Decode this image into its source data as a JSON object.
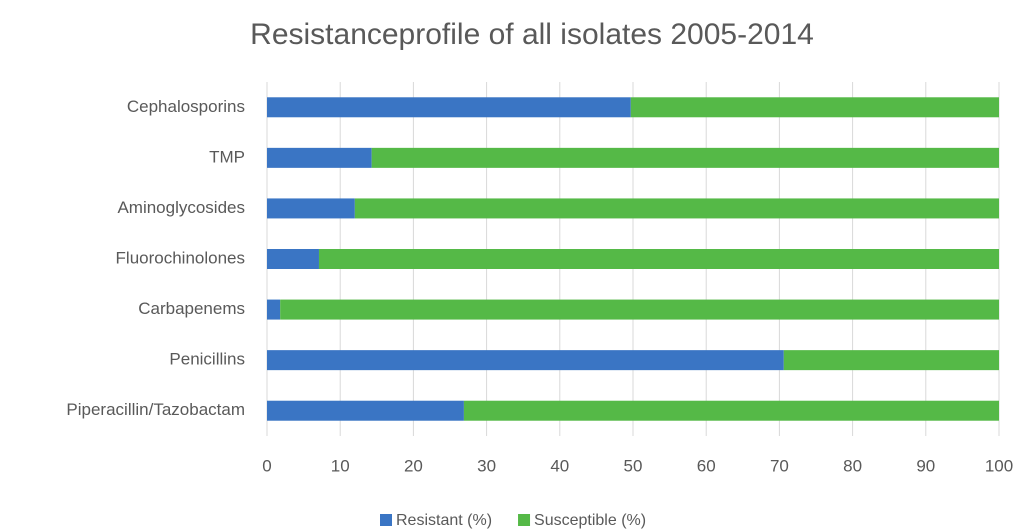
{
  "chart_data": {
    "type": "stacked-bar-horizontal",
    "title": "Resistanceprofile of all isolates 2005-2014",
    "categories": [
      "Cephalosporins",
      "TMP",
      "Aminoglycosides",
      "Fluorochinolones",
      "Carbapenems",
      "Penicillins",
      "Piperacillin/Tazobactam"
    ],
    "series": [
      {
        "name": "Resistant (%)",
        "color": "#3a75c4",
        "values": [
          49.7,
          14.3,
          12.0,
          7.1,
          1.8,
          70.6,
          26.9
        ]
      },
      {
        "name": "Susceptible (%)",
        "color": "#55b947",
        "values": [
          50.3,
          85.7,
          88.0,
          92.9,
          98.2,
          29.4,
          73.1
        ]
      }
    ],
    "xlim": [
      0,
      100
    ],
    "xticks": [
      0,
      10,
      20,
      30,
      40,
      50,
      60,
      70,
      80,
      90,
      100
    ],
    "grid": true,
    "legend": "bottom"
  }
}
